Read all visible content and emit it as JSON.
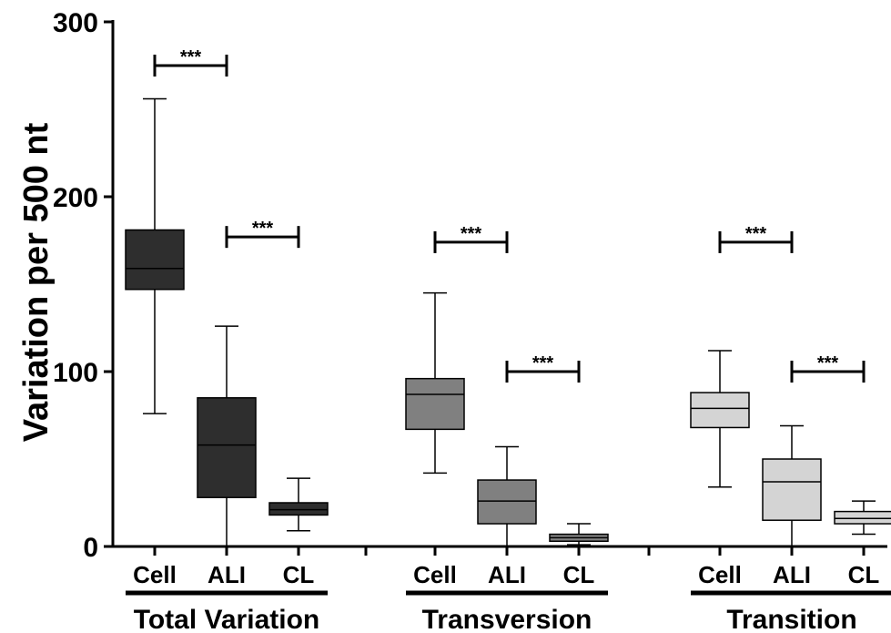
{
  "chart_data": {
    "type": "box",
    "ylabel": "Variation per 500 nt",
    "ylim": [
      0,
      300
    ],
    "yticks": [
      "0",
      "100",
      "200",
      "300"
    ],
    "grid": false,
    "groups": [
      {
        "name": "Total Variation",
        "color": "#2e2e2e",
        "boxes": [
          {
            "category": "Cell",
            "min": 76,
            "q1": 147,
            "median": 159,
            "q3": 181,
            "max": 256
          },
          {
            "category": "ALI",
            "min": 0,
            "q1": 28,
            "median": 58,
            "q3": 85,
            "max": 126
          },
          {
            "category": "CL",
            "min": 9,
            "q1": 18,
            "median": 21,
            "q3": 25,
            "max": 39
          }
        ],
        "comparisons": [
          {
            "from": 0,
            "to": 1,
            "y": 275,
            "label": "***"
          },
          {
            "from": 1,
            "to": 2,
            "y": 177,
            "label": "***"
          }
        ]
      },
      {
        "name": "Transversion",
        "color": "#808080",
        "boxes": [
          {
            "category": "Cell",
            "min": 42,
            "q1": 67,
            "median": 87,
            "q3": 96,
            "max": 145
          },
          {
            "category": "ALI",
            "min": 0,
            "q1": 13,
            "median": 26,
            "q3": 38,
            "max": 57
          },
          {
            "category": "CL",
            "min": 1,
            "q1": 3,
            "median": 5,
            "q3": 7,
            "max": 13
          }
        ],
        "comparisons": [
          {
            "from": 0,
            "to": 1,
            "y": 174,
            "label": "***"
          },
          {
            "from": 1,
            "to": 2,
            "y": 100,
            "label": "***"
          }
        ]
      },
      {
        "name": "Transition",
        "color": "#d4d4d4",
        "boxes": [
          {
            "category": "Cell",
            "min": 34,
            "q1": 68,
            "median": 79,
            "q3": 88,
            "max": 112
          },
          {
            "category": "ALI",
            "min": 0,
            "q1": 15,
            "median": 37,
            "q3": 50,
            "max": 69
          },
          {
            "category": "CL",
            "min": 7,
            "q1": 13,
            "median": 16,
            "q3": 20,
            "max": 26
          }
        ],
        "comparisons": [
          {
            "from": 0,
            "to": 1,
            "y": 174,
            "label": "***"
          },
          {
            "from": 1,
            "to": 2,
            "y": 100,
            "label": "***"
          }
        ]
      }
    ]
  }
}
